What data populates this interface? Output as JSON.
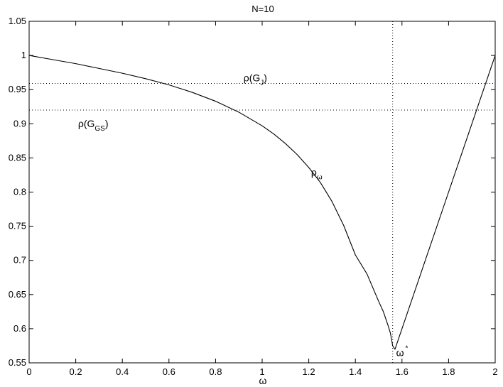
{
  "chart_data": {
    "type": "line",
    "title": "N=10",
    "xlabel": "ω",
    "ylabel": "",
    "xlim": [
      0,
      2
    ],
    "ylim": [
      0.55,
      1.05
    ],
    "grid": false,
    "xticks": [
      0,
      0.2,
      0.4,
      0.6,
      0.8,
      1,
      1.2,
      1.4,
      1.6,
      1.8,
      2
    ],
    "xtick_labels": [
      "0",
      "0.2",
      "0.4",
      "0.6",
      "0.8",
      "1",
      "1.2",
      "1.4",
      "1.6",
      "1.8",
      "2"
    ],
    "yticks": [
      0.55,
      0.6,
      0.65,
      0.7,
      0.75,
      0.8,
      0.85,
      0.9,
      0.95,
      1,
      1.05
    ],
    "ytick_labels": [
      "0.55",
      "0.6",
      "0.65",
      "0.7",
      "0.75",
      "0.8",
      "0.85",
      "0.9",
      "0.95",
      "1",
      "1.05"
    ],
    "series": [
      {
        "name": "ρω",
        "x": [
          0,
          0.1,
          0.2,
          0.3,
          0.4,
          0.5,
          0.6,
          0.7,
          0.8,
          0.9,
          1.0,
          1.05,
          1.1,
          1.15,
          1.2,
          1.25,
          1.3,
          1.35,
          1.4,
          1.45,
          1.5,
          1.52,
          1.54,
          1.55,
          1.555,
          1.56,
          1.57,
          1.6,
          1.7,
          1.8,
          1.9,
          2.0
        ],
        "y": [
          1.0,
          0.994,
          0.988,
          0.981,
          0.974,
          0.966,
          0.957,
          0.946,
          0.933,
          0.917,
          0.897,
          0.885,
          0.871,
          0.855,
          0.836,
          0.814,
          0.786,
          0.751,
          0.708,
          0.68,
          0.64,
          0.625,
          0.605,
          0.594,
          0.585,
          0.575,
          0.57,
          0.6,
          0.7,
          0.8,
          0.9,
          1.0
        ],
        "color": "#000000",
        "style": "solid"
      }
    ],
    "reference_lines": [
      {
        "orientation": "horizontal",
        "value": 0.959,
        "style": "dotted"
      },
      {
        "orientation": "horizontal",
        "value": 0.92,
        "style": "dotted"
      },
      {
        "orientation": "vertical",
        "value": 1.56,
        "style": "dotted"
      }
    ],
    "annotations": [
      {
        "id": "rho-gj",
        "base": "ρ(G",
        "sub": "J",
        "tail": ")",
        "x": 0.92,
        "y": 0.962
      },
      {
        "id": "rho-ggs",
        "base": "ρ(G",
        "sub": "GS",
        "tail": ")",
        "x": 0.21,
        "y": 0.895
      },
      {
        "id": "rho-omega",
        "base": "ρ",
        "sub": "ω",
        "tail": "",
        "x": 1.21,
        "y": 0.824
      },
      {
        "id": "omega-star",
        "base": "ω",
        "sup": "*",
        "tail": "",
        "x": 1.575,
        "y": 0.56
      }
    ]
  }
}
